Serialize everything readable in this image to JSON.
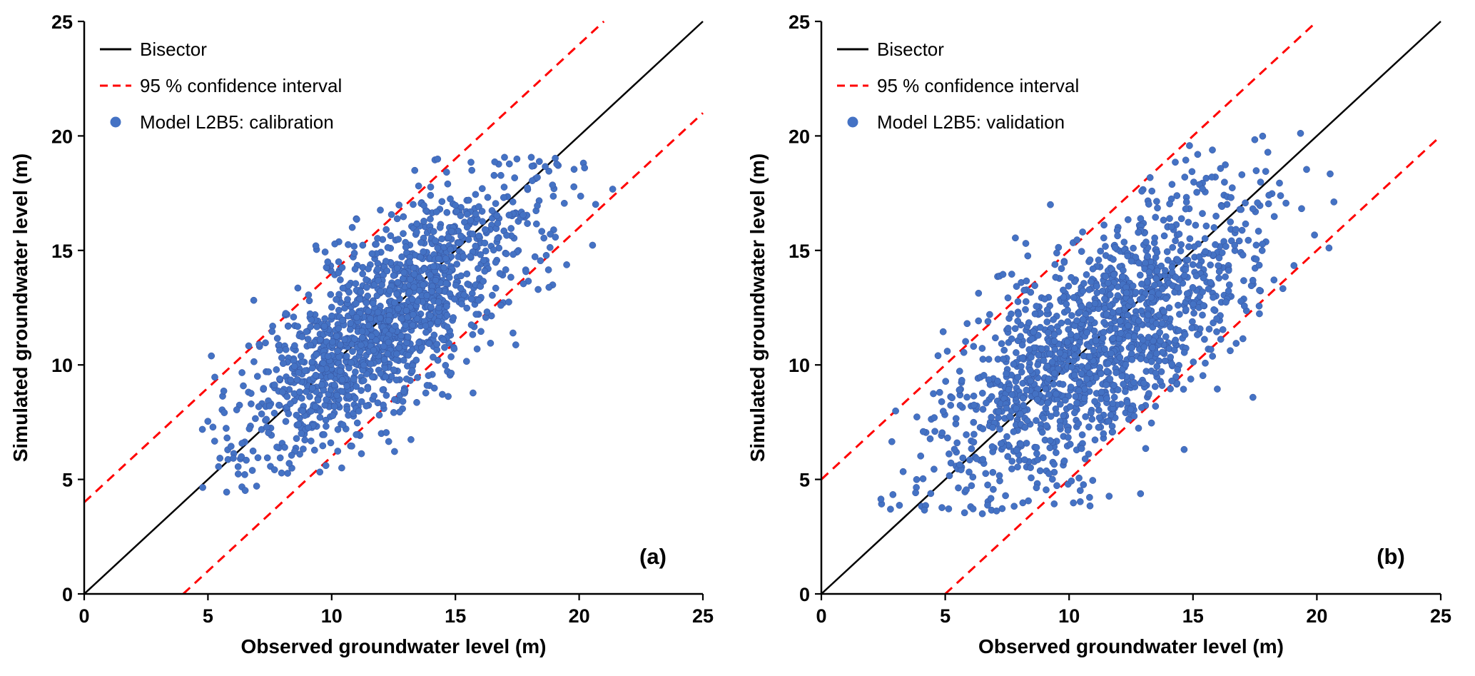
{
  "figure": {
    "background": "#ffffff",
    "description": "Two-panel scatter figure comparing observed vs simulated groundwater level for model L2B5"
  },
  "chart_data": [
    {
      "type": "scatter",
      "panel_label": "(a)",
      "xlabel": "Observed groundwater level (m)",
      "ylabel": "Simulated groundwater level (m)",
      "xlim": [
        0,
        25
      ],
      "ylim": [
        0,
        25
      ],
      "xticks": [
        0,
        5,
        10,
        15,
        20,
        25
      ],
      "yticks": [
        0,
        5,
        10,
        15,
        20,
        25
      ],
      "grid": false,
      "legend": {
        "position": "top-left",
        "entries": [
          {
            "label": "Bisector",
            "sample": "line",
            "color": "#000000",
            "dashed": false
          },
          {
            "label": "95 % confidence interval",
            "sample": "line",
            "color": "#ff0000",
            "dashed": true
          },
          {
            "label": "Model L2B5: calibration",
            "sample": "marker",
            "color": "#4472c4"
          }
        ]
      },
      "lines": [
        {
          "name": "bisector",
          "from": [
            0,
            0
          ],
          "to": [
            25,
            25
          ],
          "color": "#000000",
          "dashed": false,
          "width": 2.5
        },
        {
          "name": "ci-upper",
          "from": [
            0,
            4
          ],
          "to": [
            21,
            25
          ],
          "color": "#ff0000",
          "dashed": true,
          "width": 3
        },
        {
          "name": "ci-lower",
          "from": [
            4,
            0
          ],
          "to": [
            25,
            21
          ],
          "color": "#ff0000",
          "dashed": true,
          "width": 3
        }
      ],
      "series": [
        {
          "name": "Model L2B5: calibration",
          "marker_color": "#4472c4",
          "marker_edge": "#35529e",
          "point_count": 1500,
          "cloud": {
            "note": "dense scatter approximated by correlated cloud estimated from figure",
            "seed": 1337,
            "center": [
              12.2,
              12.0
            ],
            "sigma_major": 3.8,
            "sigma_minor": 1.45,
            "x_range": [
              4.4,
              21.9
            ],
            "y_range": [
              4.4,
              19.1
            ]
          }
        }
      ]
    },
    {
      "type": "scatter",
      "panel_label": "(b)",
      "xlabel": "Observed groundwater level (m)",
      "ylabel": "Simulated groundwater level (m)",
      "xlim": [
        0,
        25
      ],
      "ylim": [
        0,
        25
      ],
      "xticks": [
        0,
        5,
        10,
        15,
        20,
        25
      ],
      "yticks": [
        0,
        5,
        10,
        15,
        20,
        25
      ],
      "grid": false,
      "legend": {
        "position": "top-left",
        "entries": [
          {
            "label": "Bisector",
            "sample": "line",
            "color": "#000000",
            "dashed": false
          },
          {
            "label": "95 % confidence interval",
            "sample": "line",
            "color": "#ff0000",
            "dashed": true
          },
          {
            "label": "Model L2B5: validation",
            "sample": "marker",
            "color": "#4472c4"
          }
        ]
      },
      "lines": [
        {
          "name": "bisector",
          "from": [
            0,
            0
          ],
          "to": [
            25,
            25
          ],
          "color": "#000000",
          "dashed": false,
          "width": 2.5
        },
        {
          "name": "ci-upper",
          "from": [
            0,
            5
          ],
          "to": [
            20,
            25
          ],
          "color": "#ff0000",
          "dashed": true,
          "width": 3
        },
        {
          "name": "ci-lower",
          "from": [
            5,
            0
          ],
          "to": [
            25,
            20
          ],
          "color": "#ff0000",
          "dashed": true,
          "width": 3
        }
      ],
      "series": [
        {
          "name": "Model L2B5: validation",
          "marker_color": "#4472c4",
          "marker_edge": "#35529e",
          "point_count": 1500,
          "cloud": {
            "note": "dense scatter approximated by correlated cloud estimated from figure",
            "seed": 2024,
            "center": [
              11.3,
              11.1
            ],
            "sigma_major": 4.2,
            "sigma_minor": 1.75,
            "x_range": [
              2.4,
              21.4
            ],
            "y_range": [
              3.5,
              21.6
            ]
          }
        }
      ]
    }
  ]
}
